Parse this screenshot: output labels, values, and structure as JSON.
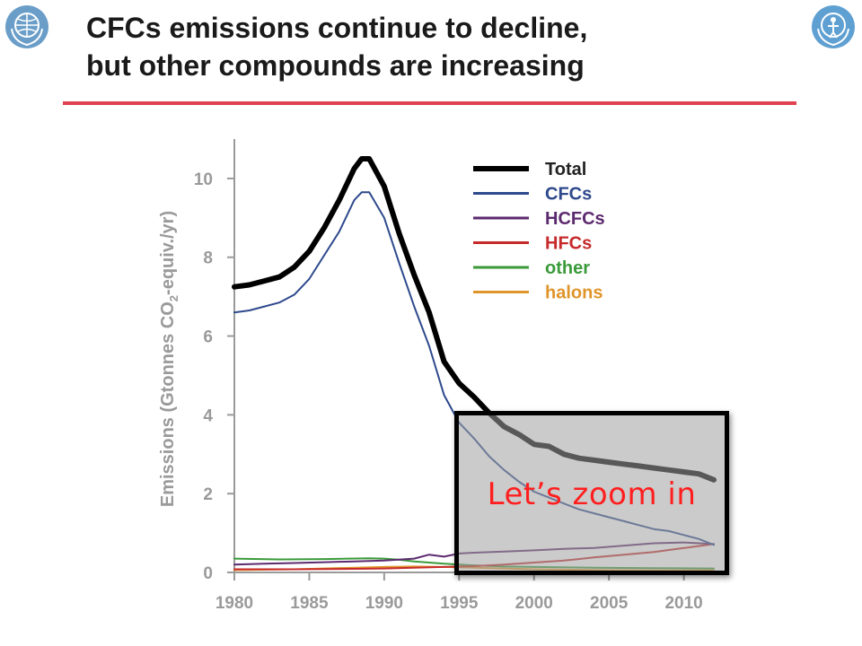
{
  "header": {
    "title_line1": "CFCs emissions continue to decline,",
    "title_line2": "but other compounds are increasing",
    "rule_color": "#e0434f",
    "logos": [
      "wmo-emblem-icon",
      "unep-emblem-icon"
    ]
  },
  "chart_data": {
    "type": "line",
    "title": "",
    "xlabel": "",
    "ylabel": "Emissions (Gtonnes CO2-equiv./yr)",
    "ylabel_parts": [
      "Emissions (Gtonnes CO",
      "2",
      "-equiv./yr)"
    ],
    "xlim": [
      1980,
      2012
    ],
    "ylim": [
      0,
      11
    ],
    "xticks": [
      1980,
      1985,
      1990,
      1995,
      2000,
      2005,
      2010
    ],
    "yticks": [
      0,
      2,
      4,
      6,
      8,
      10
    ],
    "grid": false,
    "legend_position": "top-right",
    "series": [
      {
        "name": "Total",
        "color": "#000000",
        "label_color": "#222222",
        "width": 6,
        "x": [
          1980,
          1981,
          1982,
          1983,
          1984,
          1985,
          1986,
          1987,
          1988,
          1988.5,
          1989,
          1990,
          1991,
          1992,
          1993,
          1994,
          1995,
          1996,
          1997,
          1998,
          1999,
          2000,
          2001,
          2002,
          2003,
          2004,
          2005,
          2006,
          2007,
          2008,
          2009,
          2010,
          2011,
          2012
        ],
        "values": [
          7.25,
          7.3,
          7.4,
          7.5,
          7.75,
          8.15,
          8.75,
          9.45,
          10.25,
          10.5,
          10.5,
          9.8,
          8.6,
          7.55,
          6.6,
          5.35,
          4.8,
          4.45,
          4.05,
          3.7,
          3.5,
          3.25,
          3.2,
          3.0,
          2.9,
          2.85,
          2.8,
          2.75,
          2.7,
          2.65,
          2.6,
          2.55,
          2.5,
          2.35
        ]
      },
      {
        "name": "CFCs",
        "color": "#2e4a8c",
        "label_color": "#2e4a8c",
        "width": 2,
        "x": [
          1980,
          1981,
          1982,
          1983,
          1984,
          1985,
          1986,
          1987,
          1988,
          1988.5,
          1989,
          1990,
          1991,
          1992,
          1993,
          1994,
          1995,
          1996,
          1997,
          1998,
          1999,
          2000,
          2001,
          2002,
          2003,
          2004,
          2005,
          2006,
          2007,
          2008,
          2009,
          2010,
          2011,
          2012
        ],
        "values": [
          6.6,
          6.65,
          6.75,
          6.85,
          7.05,
          7.45,
          8.05,
          8.65,
          9.45,
          9.65,
          9.65,
          9.0,
          7.85,
          6.75,
          5.75,
          4.5,
          3.8,
          3.4,
          2.95,
          2.6,
          2.3,
          2.05,
          1.9,
          1.75,
          1.6,
          1.5,
          1.4,
          1.3,
          1.2,
          1.1,
          1.05,
          0.95,
          0.85,
          0.7
        ]
      },
      {
        "name": "HCFCs",
        "color": "#5c2a6e",
        "label_color": "#5c2a6e",
        "width": 2,
        "x": [
          1980,
          1982,
          1984,
          1986,
          1988,
          1990,
          1992,
          1993,
          1994,
          1995,
          1996,
          1998,
          2000,
          2002,
          2004,
          2006,
          2008,
          2010,
          2012
        ],
        "values": [
          0.2,
          0.22,
          0.24,
          0.26,
          0.28,
          0.3,
          0.35,
          0.45,
          0.4,
          0.48,
          0.5,
          0.53,
          0.56,
          0.6,
          0.62,
          0.68,
          0.74,
          0.76,
          0.72
        ]
      },
      {
        "name": "HFCs",
        "color": "#c62a2a",
        "label_color": "#c62a2a",
        "width": 2,
        "x": [
          1980,
          1984,
          1988,
          1990,
          1992,
          1994,
          1996,
          1998,
          2000,
          2002,
          2004,
          2006,
          2008,
          2010,
          2012
        ],
        "values": [
          0.08,
          0.08,
          0.09,
          0.1,
          0.12,
          0.14,
          0.16,
          0.2,
          0.25,
          0.3,
          0.38,
          0.45,
          0.52,
          0.62,
          0.72
        ]
      },
      {
        "name": "other",
        "color": "#3a9a3a",
        "label_color": "#3a9a3a",
        "width": 2,
        "x": [
          1980,
          1983,
          1986,
          1989,
          1990,
          1991,
          1992,
          1994,
          1996,
          1998,
          2000,
          2004,
          2008,
          2012
        ],
        "values": [
          0.35,
          0.33,
          0.34,
          0.36,
          0.35,
          0.32,
          0.28,
          0.22,
          0.18,
          0.15,
          0.14,
          0.12,
          0.11,
          0.1
        ]
      },
      {
        "name": "halons",
        "color": "#e0952b",
        "label_color": "#e0952b",
        "width": 2,
        "x": [
          1980,
          1984,
          1988,
          1990,
          1992,
          1994,
          1996,
          1998,
          2000,
          2004,
          2008,
          2012
        ],
        "values": [
          0.06,
          0.08,
          0.12,
          0.14,
          0.15,
          0.14,
          0.12,
          0.1,
          0.08,
          0.06,
          0.05,
          0.05
        ]
      }
    ]
  },
  "overlay": {
    "zoom_label": "Let’s zoom in",
    "label_color": "#ff1f1f"
  }
}
